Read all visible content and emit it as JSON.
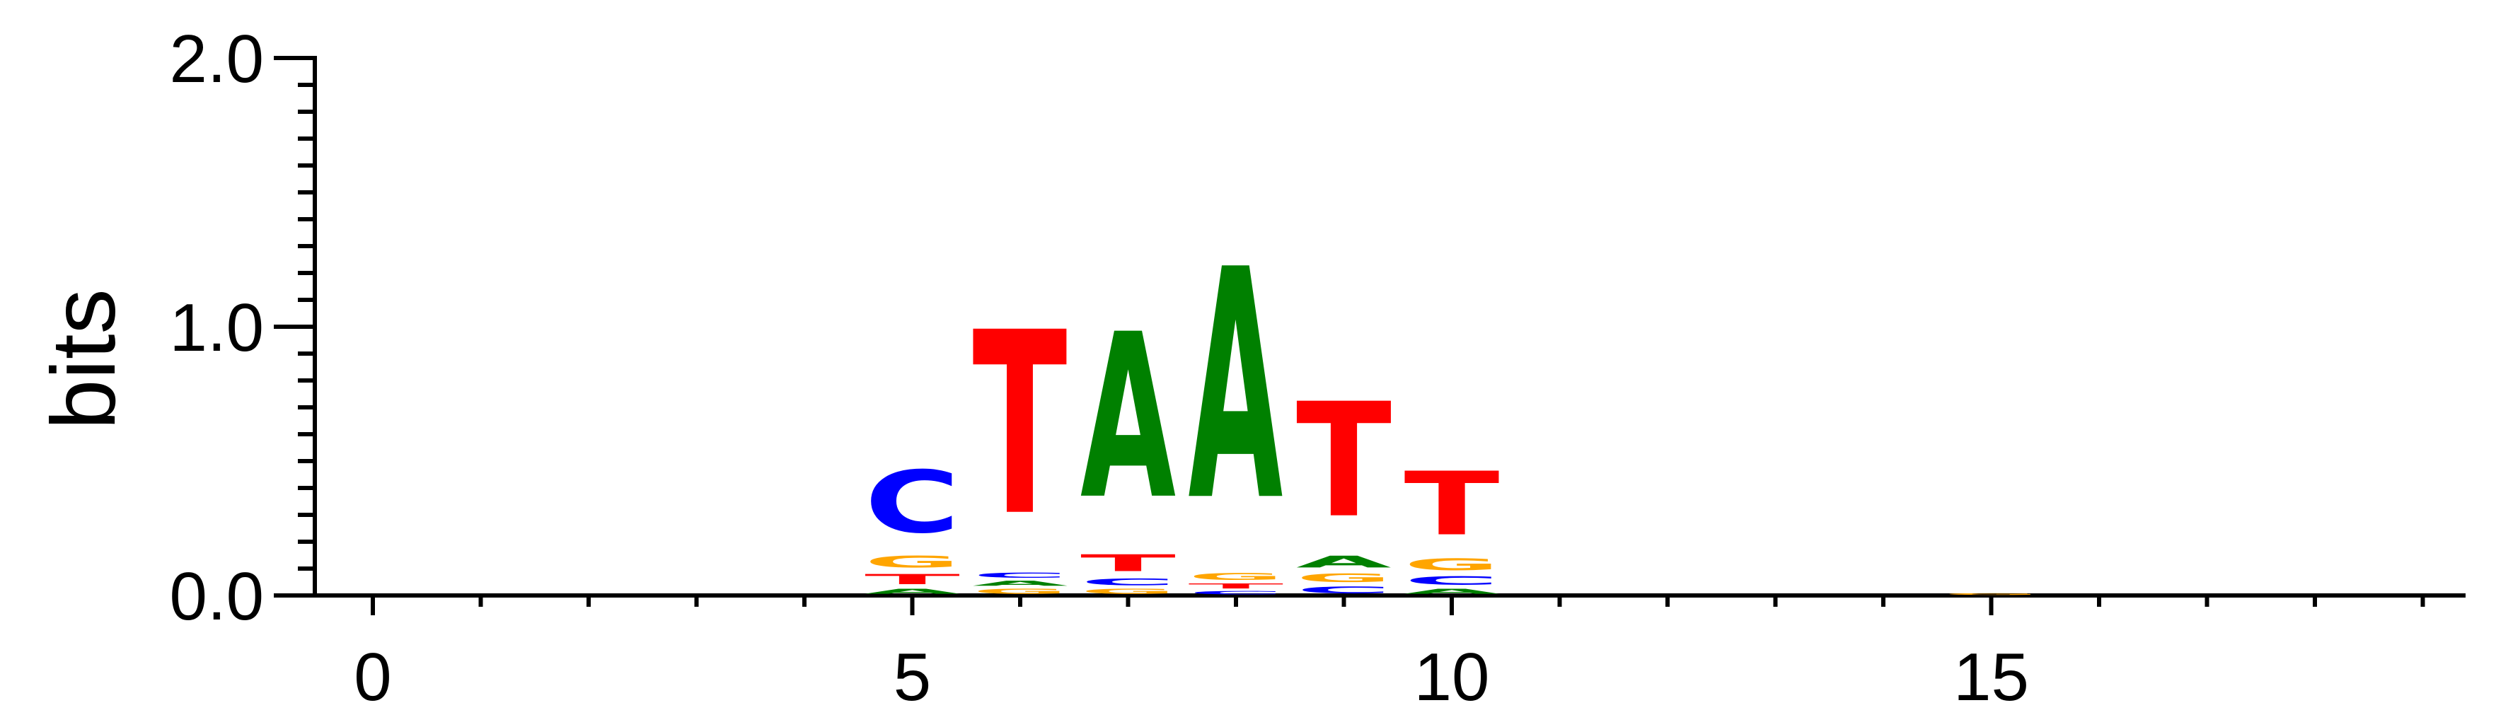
{
  "chart_data": {
    "type": "sequence-logo",
    "ylabel": "bits",
    "ylim": [
      0,
      2
    ],
    "xlim": [
      -0.5,
      19
    ],
    "y_ticks": [
      0.0,
      1.0,
      2.0
    ],
    "y_tick_labels": [
      "0.0",
      "1.0",
      "2.0"
    ],
    "y_minor_step": 0.1,
    "x_ticks": [
      0,
      5,
      10,
      15
    ],
    "x_tick_labels": [
      "0",
      "5",
      "10",
      "15"
    ],
    "x_minor_step": 1,
    "colors": {
      "A": "#008000",
      "C": "#0000ff",
      "G": "#ffa500",
      "T": "#ff0000"
    },
    "positions": [
      {
        "x": 5,
        "letters": [
          {
            "base": "A",
            "bits": 0.03
          },
          {
            "base": "T",
            "bits": 0.06
          },
          {
            "base": "G",
            "bits": 0.07
          },
          {
            "base": "C",
            "bits": 0.37
          }
        ]
      },
      {
        "x": 6,
        "letters": [
          {
            "base": "G",
            "bits": 0.03
          },
          {
            "base": "A",
            "bits": 0.03
          },
          {
            "base": "C",
            "bits": 0.03
          },
          {
            "base": "T",
            "bits": 1.09
          }
        ]
      },
      {
        "x": 7,
        "letters": [
          {
            "base": "G",
            "bits": 0.03
          },
          {
            "base": "C",
            "bits": 0.04
          },
          {
            "base": "T",
            "bits": 0.1
          },
          {
            "base": "A",
            "bits": 0.98
          }
        ]
      },
      {
        "x": 8,
        "letters": [
          {
            "base": "C",
            "bits": 0.02
          },
          {
            "base": "T",
            "bits": 0.03
          },
          {
            "base": "G",
            "bits": 0.04
          },
          {
            "base": "A",
            "bits": 1.37
          }
        ]
      },
      {
        "x": 9,
        "letters": [
          {
            "base": "C",
            "bits": 0.04
          },
          {
            "base": "G",
            "bits": 0.05
          },
          {
            "base": "A",
            "bits": 0.07
          },
          {
            "base": "T",
            "bits": 0.68
          }
        ]
      },
      {
        "x": 10,
        "letters": [
          {
            "base": "A",
            "bits": 0.03
          },
          {
            "base": "C",
            "bits": 0.05
          },
          {
            "base": "G",
            "bits": 0.07
          },
          {
            "base": "T",
            "bits": 0.38
          }
        ]
      },
      {
        "x": 15,
        "letters": [
          {
            "base": "G",
            "bits": 0.01
          }
        ]
      }
    ]
  }
}
